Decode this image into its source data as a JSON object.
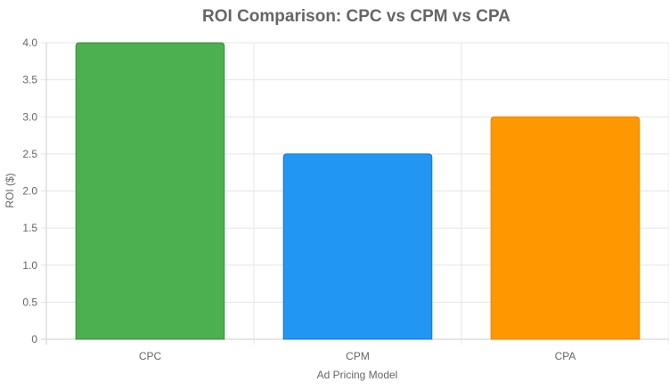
{
  "chart_data": {
    "type": "bar",
    "title": "ROI Comparison: CPC vs CPM vs CPA",
    "xlabel": "Ad Pricing Model",
    "ylabel": "ROI ($)",
    "categories": [
      "CPC",
      "CPM",
      "CPA"
    ],
    "values": [
      4.0,
      2.5,
      3.0
    ],
    "colors": [
      "#4caf50",
      "#2196f3",
      "#ff9800"
    ],
    "border_colors": [
      "#388e3c",
      "#1976d2",
      "#f57c00"
    ],
    "ylim": [
      0,
      4.0
    ],
    "yticks": [
      "0",
      "0.5",
      "1.0",
      "1.5",
      "2.0",
      "2.5",
      "3.0",
      "3.5",
      "4.0"
    ],
    "grid": true,
    "legend": "none"
  }
}
